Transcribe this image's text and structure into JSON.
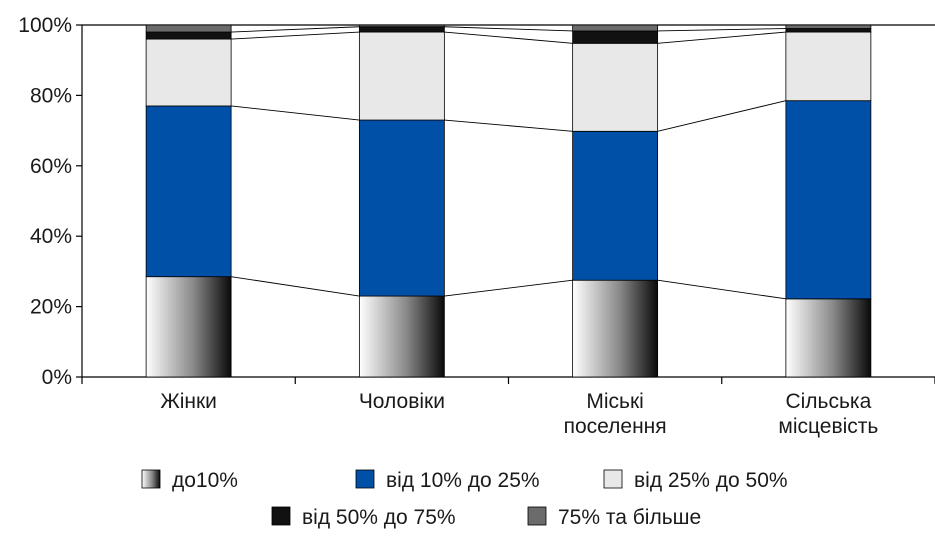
{
  "chart_data": {
    "type": "bar",
    "stacked": true,
    "percent_stacked": true,
    "categories": [
      "Жінки",
      "Чоловіки",
      "Міські поселення",
      "Сільська місцевість"
    ],
    "category_label_lines": [
      [
        "Жінки"
      ],
      [
        "Чоловіки"
      ],
      [
        "Міські",
        "поселення"
      ],
      [
        "Сільська",
        "місцевість"
      ]
    ],
    "series": [
      {
        "name": "до10%",
        "values": [
          28.5,
          23.0,
          27.5,
          22.2
        ],
        "color": "gradient-white-to-black"
      },
      {
        "name": "від 10% до 25%",
        "values": [
          48.5,
          50.0,
          42.3,
          56.3
        ],
        "color": "#0050a8"
      },
      {
        "name": "від 25% до 50%",
        "values": [
          19.0,
          25.0,
          25.0,
          19.5
        ],
        "color": "#e8e8e8"
      },
      {
        "name": "від 50% до 75%",
        "values": [
          2.0,
          1.5,
          3.5,
          1.0
        ],
        "color": "#111111"
      },
      {
        "name": "75% та більше",
        "values": [
          2.0,
          0.5,
          1.7,
          1.0
        ],
        "color": "#6b6b6b"
      }
    ],
    "ylim": [
      0,
      100
    ],
    "yticks": [
      "0%",
      "20%",
      "40%",
      "60%",
      "80%",
      "100%"
    ],
    "title": "",
    "xlabel": "",
    "ylabel": "",
    "grid": false,
    "series_lines": true,
    "legend_position": "bottom"
  }
}
